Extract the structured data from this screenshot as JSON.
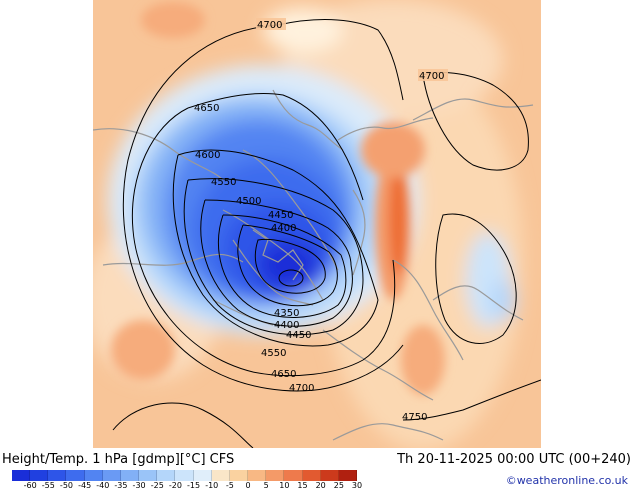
{
  "header": {
    "title": "Height/Temp. 1 hPa [gdmp][°C] CFS",
    "valid_time": "Th 20-11-2025 00:00 UTC (00+240)"
  },
  "credit": "©weatheronline.co.uk",
  "contour_labels": [
    "4700",
    "4700",
    "4650",
    "4600",
    "4550",
    "4500",
    "4450",
    "4400",
    "4350",
    "4400",
    "4450",
    "4550",
    "4650",
    "4700",
    "4750"
  ],
  "legend": {
    "tick_labels": [
      "-60",
      "-55",
      "-50",
      "-45",
      "-40",
      "-35",
      "-30",
      "-25",
      "-20",
      "-15",
      "-10",
      "-5",
      "0",
      "5",
      "10",
      "15",
      "20",
      "25",
      "30"
    ],
    "colors": [
      "#1a2ed8",
      "#2040e0",
      "#2e55e8",
      "#3e6cee",
      "#5284f2",
      "#6a9af4",
      "#82b0f6",
      "#9ac4f8",
      "#b4d6fa",
      "#cce4fb",
      "#e0eefa",
      "#fae6c8",
      "#fad2a0",
      "#f8b884",
      "#f49a68",
      "#ee7a4c",
      "#e25a30",
      "#cc3a1c",
      "#b02010"
    ]
  },
  "map_colors": {
    "background": "#f8c598",
    "cold_core": "#2a5ae6",
    "warm_core": "#ee6e34",
    "coastline": "#9a9a9a",
    "contour": "#000000"
  }
}
